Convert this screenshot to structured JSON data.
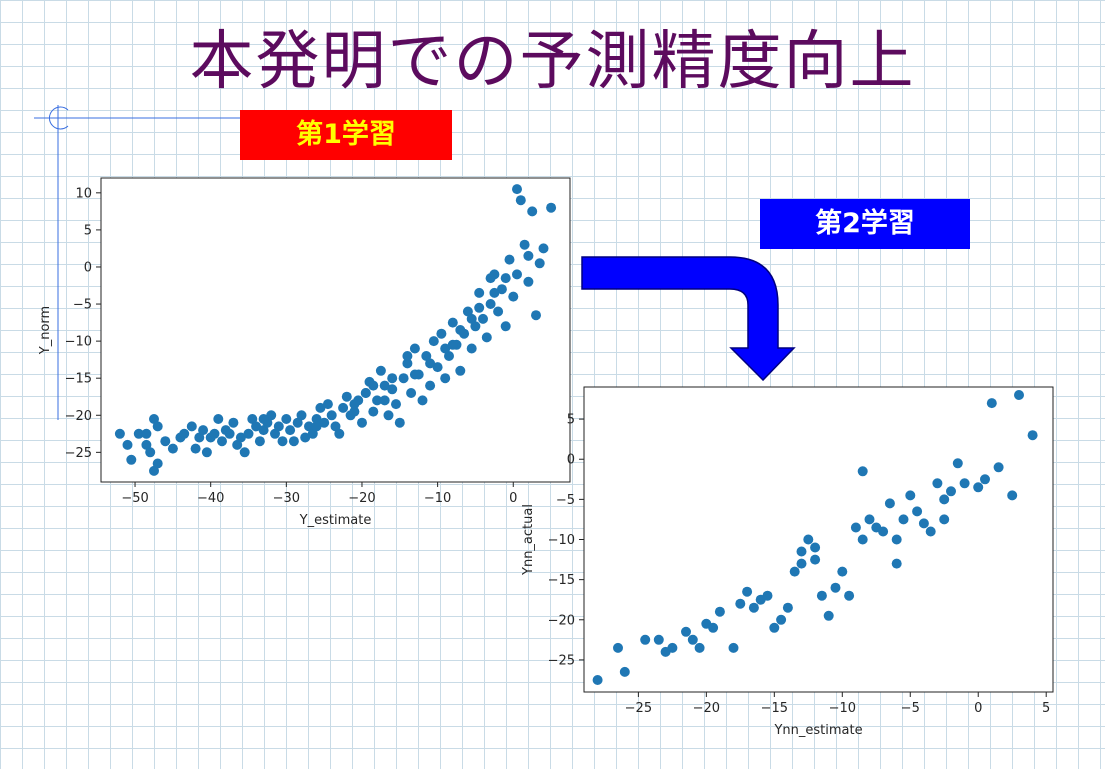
{
  "title": "本発明での予測精度向上",
  "badges": {
    "first": "第1学習",
    "second": "第2学習"
  },
  "colors": {
    "title": "#5c0b5e",
    "badge_first_bg": "#ff0000",
    "badge_first_text": "#ffff00",
    "badge_second_bg": "#0000ff",
    "badge_second_text": "#ffffff",
    "arrow": "#0000ff",
    "points": "#1f77b4"
  },
  "icons": [
    "down-right-bent-arrow-icon"
  ],
  "chart_data": [
    {
      "type": "scatter",
      "xlabel": "Y_estimate",
      "ylabel": "Y_norm",
      "xlim": [
        -54.5,
        7.5
      ],
      "ylim": [
        -29,
        12
      ],
      "xticks": [
        -50,
        -40,
        -30,
        -20,
        -10,
        0
      ],
      "yticks": [
        10,
        5,
        0,
        -5,
        -10,
        -15,
        -20,
        -25
      ],
      "points": [
        [
          -52,
          -22.5
        ],
        [
          -51,
          -24
        ],
        [
          -50.5,
          -26
        ],
        [
          -49.5,
          -22.5
        ],
        [
          -48.5,
          -22.5
        ],
        [
          -48.5,
          -24
        ],
        [
          -48,
          -25
        ],
        [
          -47.5,
          -27.5
        ],
        [
          -47,
          -26.5
        ],
        [
          -47.5,
          -20.5
        ],
        [
          -47,
          -21.5
        ],
        [
          -46,
          -23.5
        ],
        [
          -45,
          -24.5
        ],
        [
          -44,
          -23
        ],
        [
          -43.5,
          -22.5
        ],
        [
          -42.5,
          -21.5
        ],
        [
          -42,
          -24.5
        ],
        [
          -41.5,
          -23
        ],
        [
          -41,
          -22
        ],
        [
          -40.5,
          -25
        ],
        [
          -40,
          -23
        ],
        [
          -39.5,
          -22.5
        ],
        [
          -39,
          -20.5
        ],
        [
          -38.5,
          -23.5
        ],
        [
          -38,
          -22
        ],
        [
          -37.5,
          -22.5
        ],
        [
          -37,
          -21
        ],
        [
          -36.5,
          -24
        ],
        [
          -36,
          -23
        ],
        [
          -35.5,
          -25
        ],
        [
          -35,
          -22.5
        ],
        [
          -34.5,
          -20.5
        ],
        [
          -34,
          -21.5
        ],
        [
          -33.5,
          -23.5
        ],
        [
          -33,
          -22
        ],
        [
          -32.5,
          -21
        ],
        [
          -32,
          -20
        ],
        [
          -31.5,
          -22.5
        ],
        [
          -31,
          -21.5
        ],
        [
          -30.5,
          -23.5
        ],
        [
          -30,
          -20.5
        ],
        [
          -29.5,
          -22
        ],
        [
          -29,
          -23.5
        ],
        [
          -28.5,
          -21
        ],
        [
          -28,
          -20
        ],
        [
          -27.5,
          -23
        ],
        [
          -27,
          -21.5
        ],
        [
          -26.5,
          -22.5
        ],
        [
          -26,
          -20.5
        ],
        [
          -25.5,
          -19
        ],
        [
          -25,
          -21
        ],
        [
          -24.5,
          -18.5
        ],
        [
          -24,
          -20
        ],
        [
          -23.5,
          -21.5
        ],
        [
          -23,
          -22.5
        ],
        [
          -22.5,
          -19
        ],
        [
          -22,
          -17.5
        ],
        [
          -21.5,
          -20
        ],
        [
          -21,
          -19.5
        ],
        [
          -20.5,
          -18
        ],
        [
          -20,
          -21
        ],
        [
          -19.5,
          -17
        ],
        [
          -19,
          -15.5
        ],
        [
          -18.5,
          -19.5
        ],
        [
          -18,
          -18
        ],
        [
          -17.5,
          -14
        ],
        [
          -17,
          -16
        ],
        [
          -16.5,
          -20
        ],
        [
          -16,
          -16.5
        ],
        [
          -15.5,
          -18.5
        ],
        [
          -15,
          -21
        ],
        [
          -14.5,
          -15
        ],
        [
          -14,
          -13
        ],
        [
          -13.5,
          -17
        ],
        [
          -13,
          -11
        ],
        [
          -12.5,
          -14.5
        ],
        [
          -12,
          -18
        ],
        [
          -11.5,
          -12
        ],
        [
          -11,
          -16
        ],
        [
          -10.5,
          -10
        ],
        [
          -10,
          -13.5
        ],
        [
          -9.5,
          -9
        ],
        [
          -9,
          -15
        ],
        [
          -8.5,
          -12
        ],
        [
          -8,
          -7.5
        ],
        [
          -7.5,
          -10.5
        ],
        [
          -7,
          -14
        ],
        [
          -6.5,
          -9
        ],
        [
          -6,
          -6
        ],
        [
          -5.5,
          -11
        ],
        [
          -5,
          -8
        ],
        [
          -4.5,
          -3.5
        ],
        [
          -4,
          -7
        ],
        [
          -3.5,
          -9.5
        ],
        [
          -3,
          -5
        ],
        [
          -2.5,
          -1
        ],
        [
          -2,
          -6
        ],
        [
          -1.5,
          -3
        ],
        [
          -1,
          -8
        ],
        [
          -0.5,
          1
        ],
        [
          0,
          -4
        ],
        [
          0.5,
          10.5
        ],
        [
          1,
          9
        ],
        [
          1.5,
          3
        ],
        [
          2,
          -2
        ],
        [
          2.5,
          7.5
        ],
        [
          3,
          -6.5
        ],
        [
          3.5,
          0.5
        ],
        [
          4,
          2.5
        ],
        [
          5,
          8
        ],
        [
          -19.5,
          -17
        ],
        [
          -18.5,
          -16
        ],
        [
          -17,
          -18
        ],
        [
          -14,
          -12
        ],
        [
          -11,
          -13
        ],
        [
          -9,
          -11
        ],
        [
          -7,
          -8.5
        ],
        [
          -4.5,
          -5.5
        ],
        [
          -2.5,
          -3.5
        ],
        [
          -1,
          -1.5
        ],
        [
          -16,
          -15
        ],
        [
          -13,
          -14.5
        ],
        [
          -8,
          -10.5
        ],
        [
          -5.5,
          -7
        ],
        [
          -3,
          -1.5
        ],
        [
          0.5,
          -1
        ],
        [
          2,
          1.5
        ],
        [
          -21,
          -18.5
        ],
        [
          -26,
          -21.5
        ],
        [
          -33,
          -20.5
        ]
      ]
    },
    {
      "type": "scatter",
      "xlabel": "Ynn_estimate",
      "ylabel": "Ynn_actual",
      "xlim": [
        -29,
        5.5
      ],
      "ylim": [
        -29,
        9
      ],
      "xticks": [
        -25,
        -20,
        -15,
        -10,
        -5,
        0,
        5
      ],
      "yticks": [
        5,
        0,
        -5,
        -10,
        -15,
        -20,
        -25
      ],
      "points": [
        [
          -28,
          -27.5
        ],
        [
          -26.5,
          -23.5
        ],
        [
          -26,
          -26.5
        ],
        [
          -24.5,
          -22.5
        ],
        [
          -23.5,
          -22.5
        ],
        [
          -23,
          -24
        ],
        [
          -22.5,
          -23.5
        ],
        [
          -21.5,
          -21.5
        ],
        [
          -21,
          -22.5
        ],
        [
          -20.5,
          -23.5
        ],
        [
          -20,
          -20.5
        ],
        [
          -19.5,
          -21
        ],
        [
          -19,
          -19
        ],
        [
          -18,
          -23.5
        ],
        [
          -17,
          -16.5
        ],
        [
          -16.5,
          -18.5
        ],
        [
          -16,
          -17.5
        ],
        [
          -15.5,
          -17
        ],
        [
          -15,
          -21
        ],
        [
          -14.5,
          -20
        ],
        [
          -14,
          -18.5
        ],
        [
          -13.5,
          -14
        ],
        [
          -13,
          -11.5
        ],
        [
          -12.5,
          -10
        ],
        [
          -12,
          -12.5
        ],
        [
          -11.5,
          -17
        ],
        [
          -11,
          -19.5
        ],
        [
          -10.5,
          -16
        ],
        [
          -10,
          -14
        ],
        [
          -9.5,
          -17
        ],
        [
          -9,
          -8.5
        ],
        [
          -8.5,
          -10
        ],
        [
          -8.5,
          -1.5
        ],
        [
          -8,
          -7.5
        ],
        [
          -7.5,
          -8.5
        ],
        [
          -7,
          -9
        ],
        [
          -6.5,
          -5.5
        ],
        [
          -6,
          -13
        ],
        [
          -5.5,
          -7.5
        ],
        [
          -5,
          -4.5
        ],
        [
          -4.5,
          -6.5
        ],
        [
          -4,
          -8
        ],
        [
          -3.5,
          -9
        ],
        [
          -3,
          -3
        ],
        [
          -2.5,
          -5
        ],
        [
          -2,
          -4
        ],
        [
          -1.5,
          -0.5
        ],
        [
          -1,
          -3
        ],
        [
          0,
          -3.5
        ],
        [
          0.5,
          -2.5
        ],
        [
          1,
          7
        ],
        [
          1.5,
          -1
        ],
        [
          2.5,
          -4.5
        ],
        [
          3,
          8
        ],
        [
          4,
          3
        ],
        [
          -17.5,
          -18
        ],
        [
          -13,
          -13
        ],
        [
          -12,
          -11
        ],
        [
          -6,
          -10
        ],
        [
          -2.5,
          -7.5
        ]
      ]
    }
  ]
}
